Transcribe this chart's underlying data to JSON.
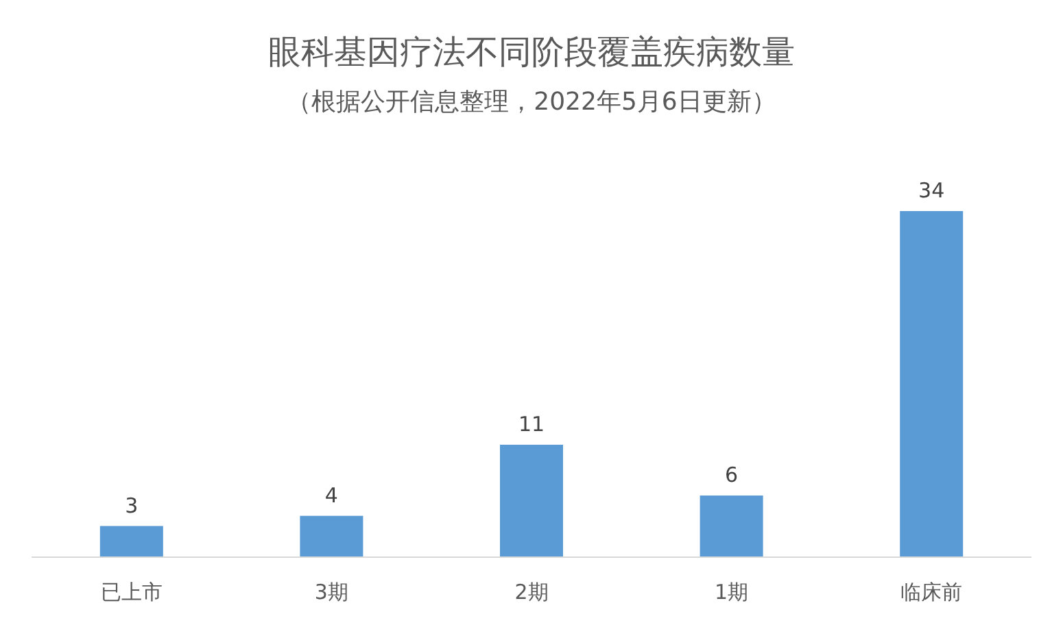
{
  "chart_data": {
    "type": "bar",
    "title": "眼科基因疗法不同阶段覆盖疾病数量",
    "subtitle": "（根据公开信息整理，2022年5月6日更新）",
    "categories": [
      "已上市",
      "3期",
      "2期",
      "1期",
      "临床前"
    ],
    "values": [
      3,
      4,
      11,
      6,
      34
    ],
    "color": "#5b9bd5",
    "data_labels": true
  }
}
